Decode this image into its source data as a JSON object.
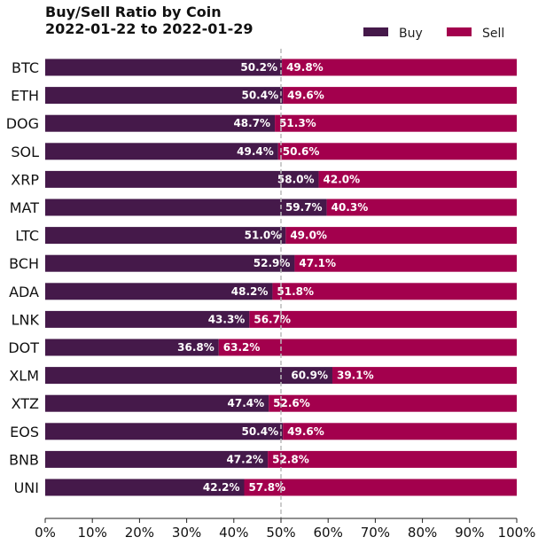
{
  "chart_data": {
    "type": "bar",
    "orientation": "horizontal",
    "stacked": true,
    "title": "Buy/Sell Ratio by Coin",
    "subtitle": "2022-01-22 to 2022-01-29",
    "categories": [
      "BTC",
      "ETH",
      "DOG",
      "SOL",
      "XRP",
      "MAT",
      "LTC",
      "BCH",
      "ADA",
      "LNK",
      "DOT",
      "XLM",
      "XTZ",
      "EOS",
      "BNB",
      "UNI"
    ],
    "series": [
      {
        "name": "Buy",
        "color": "#45194a",
        "values": [
          50.2,
          50.4,
          48.7,
          49.4,
          58.0,
          59.7,
          51.0,
          52.9,
          48.2,
          43.3,
          36.8,
          60.9,
          47.4,
          50.4,
          47.2,
          42.2
        ]
      },
      {
        "name": "Sell",
        "color": "#a3004d",
        "values": [
          49.8,
          49.6,
          51.3,
          50.6,
          42.0,
          40.3,
          49.0,
          47.1,
          51.8,
          56.7,
          63.2,
          39.1,
          52.6,
          49.6,
          52.8,
          57.8
        ]
      }
    ],
    "xlim": [
      0,
      100
    ],
    "xticks": [
      "0%",
      "10%",
      "20%",
      "30%",
      "40%",
      "50%",
      "60%",
      "70%",
      "80%",
      "90%",
      "100%"
    ],
    "reference_line": 50,
    "legend_position": "top-right",
    "grid": false
  }
}
